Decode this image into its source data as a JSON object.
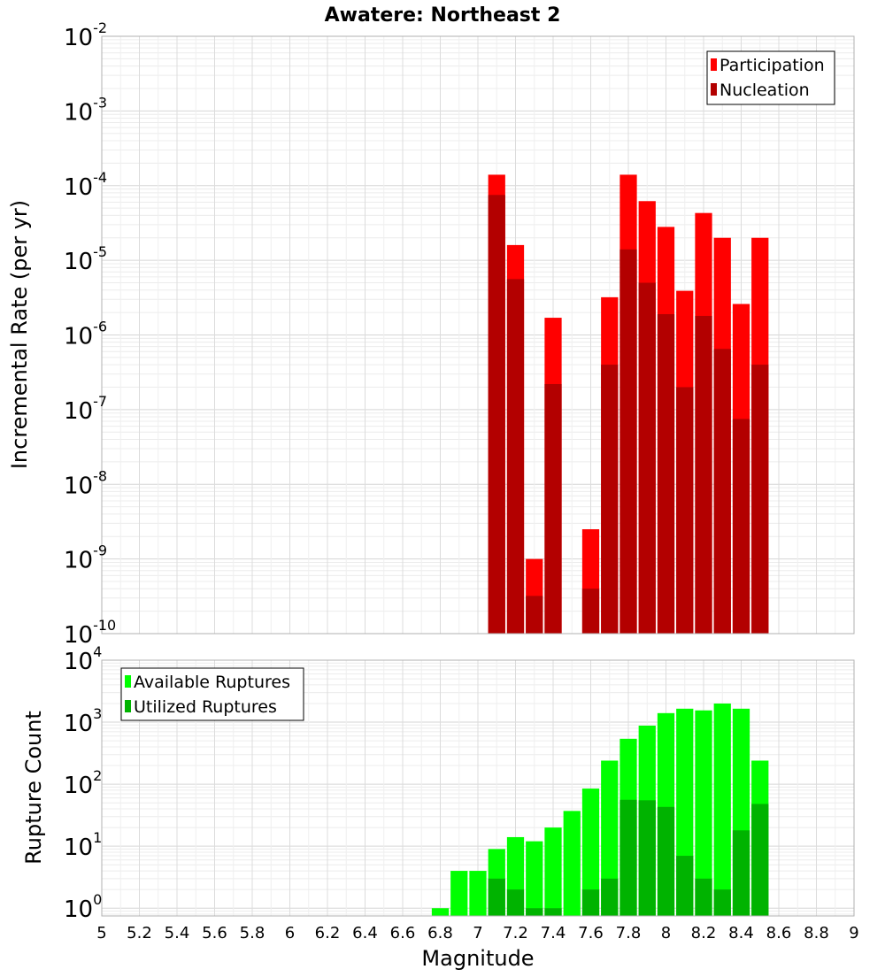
{
  "chart_data": {
    "title": "Awatere: Northeast 2",
    "xlabel": "Magnitude",
    "x_ticks": [
      "5",
      "5.2",
      "5.4",
      "5.6",
      "5.8",
      "6",
      "6.2",
      "6.4",
      "6.6",
      "6.8",
      "7",
      "7.2",
      "7.4",
      "7.6",
      "7.8",
      "8",
      "8.2",
      "8.4",
      "8.6",
      "8.8",
      "9"
    ],
    "xlim": [
      5,
      9
    ],
    "bin_width": 0.1,
    "grid": true,
    "panels": [
      {
        "type": "bar",
        "scale": "log",
        "ylabel": "Incremental Rate (per yr)",
        "ylim": [
          1e-10,
          0.01
        ],
        "y_tick_exponents": [
          "-10",
          "-9",
          "-8",
          "-7",
          "-6",
          "-5",
          "-4",
          "-3",
          "-2"
        ],
        "legend_position": "top-right",
        "series": [
          {
            "name": "Participation",
            "color": "#ff0000",
            "x": [
              7.1,
              7.2,
              7.3,
              7.4,
              7.6,
              7.7,
              7.8,
              7.9,
              8.0,
              8.1,
              8.2,
              8.3,
              8.4,
              8.5
            ],
            "values": [
              0.00014,
              1.6e-05,
              1e-09,
              1.7e-06,
              2.5e-09,
              3.2e-06,
              0.00014,
              6.2e-05,
              2.8e-05,
              3.9e-06,
              4.3e-05,
              2e-05,
              2.6e-06,
              2e-05
            ]
          },
          {
            "name": "Nucleation",
            "color": "#b30000",
            "x": [
              7.1,
              7.2,
              7.3,
              7.4,
              7.6,
              7.7,
              7.8,
              7.9,
              8.0,
              8.1,
              8.2,
              8.3,
              8.4,
              8.5
            ],
            "values": [
              7.5e-05,
              5.6e-06,
              3.2e-10,
              2.2e-07,
              4e-10,
              4e-07,
              1.4e-05,
              5e-06,
              1.9e-06,
              2e-07,
              1.8e-06,
              6.5e-07,
              7.5e-08,
              4e-07
            ]
          }
        ]
      },
      {
        "type": "bar",
        "scale": "log",
        "ylabel": "Rupture Count",
        "ylim": [
          0.75,
          10000
        ],
        "y_tick_exponents": [
          "0",
          "1",
          "2",
          "3",
          "4"
        ],
        "legend_position": "top-left",
        "series": [
          {
            "name": "Available Ruptures",
            "color": "#00ff00",
            "x": [
              6.8,
              6.9,
              7.0,
              7.1,
              7.2,
              7.3,
              7.4,
              7.5,
              7.6,
              7.7,
              7.8,
              7.9,
              8.0,
              8.1,
              8.2,
              8.3,
              8.4,
              8.5
            ],
            "values": [
              1,
              4,
              4,
              9,
              14,
              12,
              20,
              37,
              85,
              240,
              540,
              880,
              1400,
              1650,
              1550,
              2000,
              1650,
              240
            ]
          },
          {
            "name": "Utilized Ruptures",
            "color": "#00b300",
            "x": [
              7.1,
              7.2,
              7.3,
              7.4,
              7.6,
              7.7,
              7.8,
              7.9,
              8.0,
              8.1,
              8.2,
              8.3,
              8.4,
              8.5
            ],
            "values": [
              3,
              2,
              1,
              1,
              2,
              3,
              56,
              55,
              43,
              7,
              3,
              2,
              18,
              48
            ]
          }
        ]
      }
    ]
  }
}
